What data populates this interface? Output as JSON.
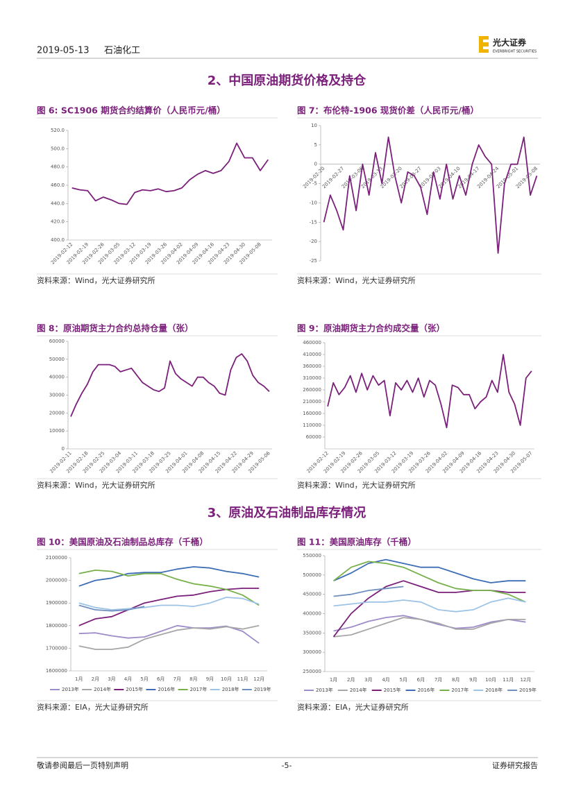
{
  "header": {
    "date": "2019-05-13",
    "sector": "石油化工",
    "logo_cn": "光大证券",
    "logo_en": "EVERBRIGHT SECURITIES"
  },
  "headings": [
    "2、中国原油期货价格及持仓",
    "3、原油及石油制品库存情况"
  ],
  "footer": {
    "left": "敬请参阅最后一页特别声明",
    "center": "-5-",
    "right": "证券研究报告"
  },
  "chart_data": [
    {
      "type": "line",
      "title": "图 6:  SC1906 期货合约结算价（人民币元/桶）",
      "source": "资料来源：Wind，光大证券研究所",
      "color": "#7a1f7a",
      "categories": [
        "2019-02-12",
        null,
        "2019-02-19",
        null,
        "2019-02-26",
        null,
        "2019-03-05",
        null,
        "2019-03-12",
        null,
        "2019-03-19",
        null,
        "2019-03-26",
        null,
        "2019-04-02",
        null,
        "2019-04-09",
        null,
        "2019-04-16",
        null,
        "2019-04-23",
        null,
        "2019-04-30",
        null,
        "2019-05-08",
        null
      ],
      "values": [
        457,
        455,
        454,
        443,
        447,
        444,
        440,
        439,
        452,
        455,
        454,
        456,
        453,
        454,
        457,
        466,
        472,
        476,
        473,
        476,
        486,
        506,
        490,
        490,
        476,
        488
      ],
      "ylim": [
        400,
        520
      ],
      "yticks": [
        {
          "value": 400,
          "label": "400.0"
        },
        {
          "value": 420,
          "label": "420.0"
        },
        {
          "value": 440,
          "label": "440.0"
        },
        {
          "value": 460,
          "label": "460.0"
        },
        {
          "value": 480,
          "label": "480.0"
        },
        {
          "value": 500,
          "label": "500.0"
        },
        {
          "value": 520,
          "label": "520.0"
        }
      ]
    },
    {
      "type": "line",
      "title": "图 7：布伦特-1906 现货价差（人民币元/桶）",
      "source": "资料来源：Wind，光大证券研究所",
      "color": "#7a1f7a",
      "categories": [
        "2019-02-20",
        null,
        null,
        "2019-02-27",
        null,
        null,
        "2019-03-06",
        null,
        null,
        "2019-03-13",
        null,
        null,
        "2019-03-20",
        null,
        null,
        "2019-03-27",
        null,
        null,
        "2019-04-03",
        null,
        null,
        "2019-04-10",
        null,
        null,
        "2019-04-17",
        null,
        null,
        "2019-04-24",
        null,
        null,
        "2019-05-01",
        null,
        null,
        "2019-05-08"
      ],
      "values": [
        -15,
        -8,
        -12,
        -17,
        -3,
        -12,
        0,
        -8,
        3,
        -5,
        7,
        -3,
        -10,
        -2,
        -3,
        -6,
        -13,
        -2,
        -9,
        0,
        -9,
        -3,
        -8,
        0,
        5,
        2,
        0,
        -23,
        -5,
        0,
        0,
        7,
        -8,
        -3
      ],
      "ylim": [
        -25,
        10
      ],
      "yticks": [
        -25,
        -20,
        -15,
        -10,
        -5,
        0,
        5,
        10
      ]
    },
    {
      "type": "line",
      "title": "图 8：原油期货主力合约总持仓量（张）",
      "source": "资料来源：Wind，光大证券研究所",
      "color": "#7a1f7a",
      "categories": [
        "2019-02-11",
        null,
        null,
        "2019-02-18",
        null,
        null,
        "2019-02-25",
        null,
        null,
        "2019-03-04",
        null,
        null,
        "2019-03-11",
        null,
        null,
        "2019-03-18",
        null,
        null,
        "2019-03-25",
        null,
        null,
        "2019-04-01",
        null,
        null,
        "2019-04-08",
        null,
        null,
        "2019-04-15",
        null,
        null,
        "2019-04-22",
        null,
        null,
        "2019-04-29",
        null,
        null,
        "2019-05-06"
      ],
      "values": [
        18000,
        25000,
        31000,
        36000,
        43000,
        47000,
        47000,
        47000,
        46000,
        43000,
        44000,
        45000,
        41000,
        37000,
        35000,
        33000,
        32000,
        34000,
        49000,
        42000,
        39000,
        37000,
        35000,
        40000,
        40000,
        37000,
        35000,
        31000,
        30000,
        44000,
        51000,
        53000,
        49000,
        41000,
        37000,
        35000,
        32000
      ],
      "ylim": [
        0,
        60000
      ],
      "yticks": [
        0,
        10000,
        20000,
        30000,
        40000,
        50000,
        60000
      ]
    },
    {
      "type": "line",
      "title": "图 9：原油期货主力合约成交量（张）",
      "source": "资料来源：Wind，光大证券研究所",
      "color": "#7a1f7a",
      "categories": [
        "2019-02-12",
        null,
        null,
        "2019-02-19",
        null,
        null,
        "2019-02-26",
        null,
        null,
        "2019-03-05",
        null,
        null,
        "2019-03-12",
        null,
        null,
        "2019-03-19",
        null,
        null,
        "2019-03-26",
        null,
        null,
        "2019-04-02",
        null,
        null,
        "2019-04-09",
        null,
        null,
        "2019-04-16",
        null,
        null,
        "2019-04-23",
        null,
        null,
        "2019-04-30",
        null,
        null,
        "2019-05-07"
      ],
      "values": [
        190000,
        290000,
        240000,
        270000,
        320000,
        250000,
        330000,
        260000,
        320000,
        280000,
        300000,
        150000,
        290000,
        260000,
        300000,
        250000,
        310000,
        230000,
        300000,
        280000,
        200000,
        100000,
        280000,
        270000,
        240000,
        240000,
        180000,
        210000,
        230000,
        300000,
        250000,
        410000,
        250000,
        200000,
        110000,
        310000,
        340000
      ],
      "ylim": [
        10000,
        460000
      ],
      "yticks": [
        60000,
        110000,
        160000,
        210000,
        260000,
        310000,
        360000,
        410000,
        460000
      ]
    },
    {
      "type": "line",
      "title": "图 10：美国原油及石油制品总库存（千桶）",
      "source": "资料来源：EIA，光大证券研究所",
      "categories": [
        "1月",
        "2月",
        "3月",
        "4月",
        "5月",
        "6月",
        "7月",
        "8月",
        "9月",
        "10月",
        "11月",
        "12月"
      ],
      "series": [
        {
          "name": "2013年",
          "color": "#9e8bc9",
          "values": [
            1765000,
            1768000,
            1755000,
            1745000,
            1750000,
            1775000,
            1800000,
            1790000,
            1790000,
            1798000,
            1775000,
            1722000
          ]
        },
        {
          "name": "2014年",
          "color": "#a6a6a6",
          "values": [
            1710000,
            1695000,
            1695000,
            1705000,
            1740000,
            1760000,
            1780000,
            1790000,
            1785000,
            1795000,
            1785000,
            1800000
          ]
        },
        {
          "name": "2015年",
          "color": "#7a1f7a",
          "values": [
            1800000,
            1830000,
            1840000,
            1870000,
            1900000,
            1915000,
            1930000,
            1935000,
            1950000,
            1960000,
            1965000,
            1965000
          ]
        },
        {
          "name": "2016年",
          "color": "#3d6db5",
          "values": [
            1975000,
            2000000,
            2010000,
            2030000,
            2035000,
            2035000,
            2050000,
            2060000,
            2055000,
            2040000,
            2030000,
            2015000
          ]
        },
        {
          "name": "2017年",
          "color": "#77b04a",
          "values": [
            2030000,
            2045000,
            2040000,
            2020000,
            2030000,
            2030000,
            2005000,
            1985000,
            1975000,
            1960000,
            1935000,
            1890000
          ]
        },
        {
          "name": "2018年",
          "color": "#9dc3e6",
          "values": [
            1900000,
            1880000,
            1870000,
            1875000,
            1880000,
            1890000,
            1890000,
            1885000,
            1900000,
            1925000,
            1920000,
            1895000
          ]
        },
        {
          "name": "2019年",
          "color": "#6f8fc0",
          "values": [
            1890000,
            1870000,
            1865000,
            1870000,
            1885000,
            null,
            null,
            null,
            null,
            null,
            null,
            null
          ]
        }
      ],
      "ylim": [
        1600000,
        2100000
      ],
      "yticks": [
        1600000,
        1700000,
        1800000,
        1900000,
        2000000,
        2100000
      ]
    },
    {
      "type": "line",
      "title": "图 11：美国原油库存（千桶）",
      "source": "资料来源：EIA，光大证券研究所",
      "categories": [
        "1月",
        "2月",
        "3月",
        "4月",
        "5月",
        "6月",
        "7月",
        "8月",
        "9月",
        "10月",
        "11月",
        "12月"
      ],
      "series": [
        {
          "name": "2013年",
          "color": "#9e8bc9",
          "values": [
            355000,
            365000,
            380000,
            390000,
            395000,
            385000,
            372000,
            362000,
            365000,
            378000,
            385000,
            378000
          ]
        },
        {
          "name": "2014年",
          "color": "#a6a6a6",
          "values": [
            340000,
            345000,
            360000,
            375000,
            390000,
            385000,
            375000,
            360000,
            360000,
            375000,
            385000,
            385000
          ]
        },
        {
          "name": "2015年",
          "color": "#7a1f7a",
          "values": [
            340000,
            400000,
            440000,
            470000,
            485000,
            470000,
            455000,
            455000,
            460000,
            460000,
            455000,
            455000
          ]
        },
        {
          "name": "2016年",
          "color": "#3d6db5",
          "values": [
            485000,
            505000,
            530000,
            540000,
            530000,
            520000,
            520000,
            505000,
            490000,
            480000,
            485000,
            485000
          ]
        },
        {
          "name": "2017年",
          "color": "#77b04a",
          "values": [
            485000,
            520000,
            535000,
            530000,
            520000,
            500000,
            480000,
            465000,
            460000,
            460000,
            450000,
            430000
          ]
        },
        {
          "name": "2018年",
          "color": "#9dc3e6",
          "values": [
            420000,
            425000,
            430000,
            430000,
            435000,
            430000,
            410000,
            405000,
            410000,
            430000,
            440000,
            430000
          ]
        },
        {
          "name": "2019年",
          "color": "#6f8fc0",
          "values": [
            445000,
            450000,
            460000,
            465000,
            470000,
            null,
            null,
            null,
            null,
            null,
            null,
            null
          ]
        }
      ],
      "ylim": [
        250000,
        550000
      ],
      "yticks": [
        250000,
        300000,
        350000,
        400000,
        450000,
        500000,
        550000
      ]
    }
  ]
}
